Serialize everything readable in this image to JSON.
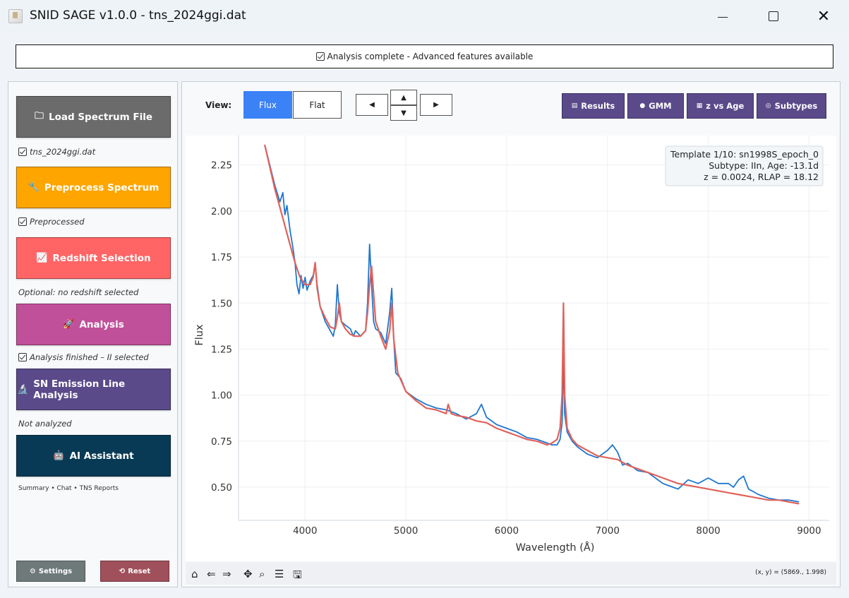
{
  "window": {
    "title": "SNID SAGE v1.0.0 - tns_2024ggi.dat",
    "minimize_icon": "minimize-icon",
    "maximize_icon": "maximize-icon",
    "close_glyph": "✕"
  },
  "status_banner": {
    "text": "Analysis complete - Advanced features available"
  },
  "sidebar": {
    "load": {
      "label": "Load Spectrum File",
      "icon": "folder-icon",
      "color": "#6b6b6b",
      "status": "tns_2024ggi.dat"
    },
    "preprocess": {
      "label": "Preprocess Spectrum",
      "icon": "wrench-icon",
      "color": "#fea500",
      "status": "Preprocessed"
    },
    "redshift": {
      "label": "Redshift Selection",
      "icon": "chart-icon",
      "color": "#ff6565",
      "status": "Optional: no redshift selected"
    },
    "analysis": {
      "label": "Analysis",
      "icon": "rocket-icon",
      "color": "#c0509a",
      "status": "Analysis finished – II selected"
    },
    "emission": {
      "label": "SN Emission Line Analysis",
      "icon": "microscope-icon",
      "color": "#5a4a8a",
      "status": "Not analyzed"
    },
    "ai": {
      "label": "AI Assistant",
      "icon": "robot-icon",
      "color": "#083a55",
      "status": "Summary • Chat • TNS Reports"
    },
    "settings_label": "Settings",
    "reset_label": "Reset"
  },
  "plot_controls": {
    "view_label": "View:",
    "flux_label": "Flux",
    "flat_label": "Flat",
    "prev_glyph": "◀",
    "next_glyph": "▶",
    "up_glyph": "▲",
    "down_glyph": "▼",
    "results_label": "Results",
    "gmm_label": "GMM",
    "zage_label": "z vs Age",
    "subtypes_label": "Subtypes"
  },
  "template_info": {
    "line1": "Template 1/10: sn1998S_epoch_0",
    "line2": "Subtype: IIn, Age: -13.1d",
    "line3": "z = 0.0024, RLAP = 18.12"
  },
  "toolbar": {
    "coord_readout": "(x, y) = (5869., 1.998)"
  },
  "chart_data": {
    "type": "line",
    "title": "",
    "xlabel": "Wavelength (Å)",
    "ylabel": "Flux",
    "xlim": [
      3340,
      9200
    ],
    "ylim": [
      0.32,
      2.41
    ],
    "xticks": [
      4000,
      5000,
      6000,
      7000,
      8000,
      9000
    ],
    "yticks": [
      0.5,
      0.75,
      1.0,
      1.25,
      1.5,
      1.75,
      2.0,
      2.25
    ],
    "grid": true,
    "series": [
      {
        "color": "#1f77d0",
        "x": [
          3600,
          3650,
          3700,
          3750,
          3780,
          3800,
          3820,
          3850,
          3880,
          3900,
          3920,
          3940,
          3960,
          3980,
          4000,
          4020,
          4050,
          4080,
          4100,
          4120,
          4150,
          4200,
          4250,
          4280,
          4300,
          4320,
          4340,
          4360,
          4400,
          4450,
          4480,
          4500,
          4550,
          4600,
          4620,
          4640,
          4660,
          4680,
          4700,
          4750,
          4800,
          4840,
          4860,
          4880,
          4900,
          4950,
          5000,
          5100,
          5200,
          5300,
          5400,
          5500,
          5600,
          5700,
          5750,
          5800,
          5900,
          6000,
          6100,
          6200,
          6300,
          6400,
          6450,
          6500,
          6530,
          6550,
          6563,
          6575,
          6600,
          6650,
          6700,
          6800,
          6900,
          7000,
          7050,
          7100,
          7150,
          7200,
          7300,
          7400,
          7500,
          7550,
          7600,
          7700,
          7800,
          7850,
          7900,
          8000,
          8100,
          8200,
          8250,
          8300,
          8350,
          8400,
          8500,
          8600,
          8700,
          8800,
          8900
        ],
        "y": [
          2.36,
          2.25,
          2.14,
          2.05,
          2.1,
          1.98,
          2.03,
          1.9,
          1.8,
          1.72,
          1.6,
          1.55,
          1.65,
          1.58,
          1.64,
          1.57,
          1.62,
          1.65,
          1.7,
          1.6,
          1.48,
          1.4,
          1.35,
          1.32,
          1.38,
          1.6,
          1.45,
          1.4,
          1.38,
          1.36,
          1.32,
          1.35,
          1.32,
          1.35,
          1.5,
          1.82,
          1.6,
          1.4,
          1.36,
          1.34,
          1.28,
          1.45,
          1.58,
          1.3,
          1.12,
          1.09,
          1.02,
          0.98,
          0.95,
          0.93,
          0.92,
          0.9,
          0.87,
          0.9,
          0.95,
          0.88,
          0.84,
          0.82,
          0.8,
          0.77,
          0.76,
          0.74,
          0.73,
          0.73,
          0.76,
          0.85,
          1.2,
          0.9,
          0.8,
          0.75,
          0.72,
          0.68,
          0.66,
          0.7,
          0.73,
          0.69,
          0.62,
          0.63,
          0.59,
          0.58,
          0.54,
          0.52,
          0.51,
          0.49,
          0.54,
          0.53,
          0.52,
          0.55,
          0.52,
          0.52,
          0.5,
          0.54,
          0.56,
          0.49,
          0.46,
          0.44,
          0.43,
          0.43,
          0.42
        ]
      },
      {
        "color": "#e0625a",
        "x": [
          3600,
          3650,
          3700,
          3750,
          3800,
          3850,
          3900,
          3950,
          4000,
          4050,
          4080,
          4100,
          4120,
          4150,
          4200,
          4250,
          4300,
          4320,
          4340,
          4360,
          4400,
          4450,
          4500,
          4550,
          4600,
          4620,
          4640,
          4660,
          4680,
          4700,
          4750,
          4800,
          4840,
          4860,
          4880,
          4920,
          5000,
          5100,
          5200,
          5300,
          5400,
          5420,
          5450,
          5500,
          5600,
          5700,
          5800,
          5900,
          6000,
          6100,
          6200,
          6300,
          6400,
          6450,
          6500,
          6530,
          6550,
          6563,
          6575,
          6600,
          6650,
          6700,
          6800,
          6900,
          7000,
          7100,
          7200,
          7300,
          7400,
          7500,
          7600,
          7700,
          7800,
          7900,
          8000,
          8100,
          8200,
          8300,
          8400,
          8500,
          8600,
          8700,
          8800,
          8900
        ],
        "y": [
          2.36,
          2.24,
          2.12,
          2.02,
          1.92,
          1.82,
          1.72,
          1.64,
          1.6,
          1.6,
          1.64,
          1.72,
          1.58,
          1.48,
          1.42,
          1.37,
          1.36,
          1.42,
          1.5,
          1.4,
          1.36,
          1.33,
          1.32,
          1.32,
          1.35,
          1.45,
          1.6,
          1.7,
          1.55,
          1.4,
          1.32,
          1.25,
          1.35,
          1.5,
          1.3,
          1.12,
          1.02,
          0.97,
          0.93,
          0.92,
          0.9,
          0.95,
          0.9,
          0.89,
          0.88,
          0.86,
          0.85,
          0.82,
          0.8,
          0.78,
          0.76,
          0.75,
          0.73,
          0.74,
          0.76,
          0.82,
          1.0,
          1.5,
          1.0,
          0.82,
          0.76,
          0.73,
          0.7,
          0.67,
          0.66,
          0.65,
          0.62,
          0.6,
          0.58,
          0.56,
          0.54,
          0.52,
          0.51,
          0.5,
          0.49,
          0.48,
          0.47,
          0.46,
          0.45,
          0.44,
          0.43,
          0.43,
          0.42,
          0.41
        ]
      }
    ]
  }
}
